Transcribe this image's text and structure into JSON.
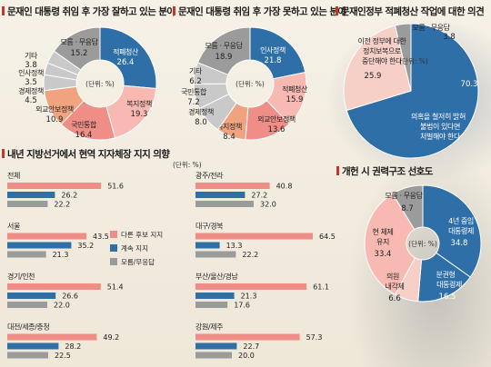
{
  "colors": {
    "blue": "#2f6fa8",
    "pink": "#ef8d87",
    "pink_light": "#f7b9b2",
    "pink_pale": "#f6cfc7",
    "orange": "#f0a37f",
    "gray": "#9b9b9b",
    "gray_light": "#c9c9c9",
    "bar_pink": "#ef8d87",
    "bar_blue": "#2f6fa8",
    "bar_gray": "#9b9b9b"
  },
  "chart_data": [
    {
      "type": "pie",
      "title": "문재인 대통령 취임 후 가장 잘하고 있는 분야",
      "unit": "(단위: %)",
      "slices": [
        {
          "label": "적폐청산",
          "value": 26.4,
          "color": "blue"
        },
        {
          "label": "복지정책",
          "value": 19.3,
          "color": "pink_light"
        },
        {
          "label": "국민통합",
          "value": 16.4,
          "color": "pink"
        },
        {
          "label": "외교안보정책",
          "value": 10.9,
          "color": "orange"
        },
        {
          "label": "경제정책",
          "value": 4.5,
          "color": "gray_light"
        },
        {
          "label": "인사정책",
          "value": 3.5,
          "color": "gray_light"
        },
        {
          "label": "기타",
          "value": 3.8,
          "color": "gray_light"
        },
        {
          "label": "모름 · 무응답",
          "value": 15.2,
          "color": "gray"
        }
      ]
    },
    {
      "type": "pie",
      "title": "문재인 대통령 취임 후 가장 못하고 있는 분야",
      "unit": "(단위: %)",
      "slices": [
        {
          "label": "인사정책",
          "value": 21.8,
          "color": "blue"
        },
        {
          "label": "적폐청산",
          "value": 15.9,
          "color": "pink_light"
        },
        {
          "label": "외교안보정책",
          "value": 13.6,
          "color": "pink"
        },
        {
          "label": "복지정책",
          "value": 8.4,
          "color": "orange"
        },
        {
          "label": "경제정책",
          "value": 8.0,
          "color": "gray_light"
        },
        {
          "label": "국민통합",
          "value": 7.2,
          "color": "gray_light"
        },
        {
          "label": "기타",
          "value": 6.2,
          "color": "gray_light"
        },
        {
          "label": "모름 · 무응답",
          "value": 18.9,
          "color": "gray"
        }
      ]
    },
    {
      "type": "pie",
      "title": "문재인정부 적폐청산 작업에 대한 의견",
      "unit": "(단위: %)",
      "slices": [
        {
          "label": "의혹을 철저히 밝혀 불법이 있다면 처벌해야 한다",
          "value": 70.3,
          "color": "blue"
        },
        {
          "label": "이전 정부에 대한 정치보복으로 중단해야 한다",
          "value": 25.9,
          "color": "pink_pale"
        },
        {
          "label": "모름 · 무응답",
          "value": 3.8,
          "color": "gray"
        }
      ]
    },
    {
      "type": "pie",
      "title": "개헌 시 권력구조 선호도",
      "unit": "(단위: %)",
      "slices": [
        {
          "label": "4년 중임 대통령제",
          "value": 34.8,
          "color": "blue"
        },
        {
          "label": "분권형 대통령제",
          "value": 16.5,
          "color": "blue"
        },
        {
          "label": "의원 내각제",
          "value": 6.6,
          "color": "pink_pale"
        },
        {
          "label": "현 체제 유지",
          "value": 33.4,
          "color": "pink_light"
        },
        {
          "label": "모름 · 무응답",
          "value": 8.7,
          "color": "gray"
        }
      ]
    },
    {
      "type": "bar",
      "orientation": "horizontal",
      "title": "내년 지방선거에서 현역 지자체장 지지 의향",
      "unit": "(단위: %)",
      "series": [
        {
          "name": "다른 후보 지지",
          "color": "bar_pink"
        },
        {
          "name": "계속 지지",
          "color": "bar_blue"
        },
        {
          "name": "모름/무응답",
          "color": "bar_gray"
        }
      ],
      "categories": [
        {
          "label": "전체",
          "values": [
            51.6,
            26.2,
            22.2
          ]
        },
        {
          "label": "서울",
          "values": [
            43.5,
            35.2,
            21.3
          ]
        },
        {
          "label": "경기/인천",
          "values": [
            51.4,
            26.6,
            22.0
          ]
        },
        {
          "label": "대전/세종/충청",
          "values": [
            49.2,
            28.2,
            22.5
          ]
        },
        {
          "label": "광주/전라",
          "values": [
            40.8,
            27.2,
            32.0
          ]
        },
        {
          "label": "대구/경북",
          "values": [
            64.5,
            13.3,
            22.2
          ]
        },
        {
          "label": "부산/울산/경남",
          "values": [
            61.1,
            21.3,
            17.6
          ]
        },
        {
          "label": "강원/제주",
          "values": [
            57.3,
            22.7,
            20.0
          ]
        }
      ],
      "xlim": [
        0,
        70
      ]
    }
  ]
}
